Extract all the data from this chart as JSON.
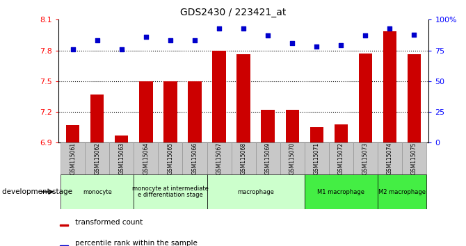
{
  "title": "GDS2430 / 223421_at",
  "samples": [
    "GSM115061",
    "GSM115062",
    "GSM115063",
    "GSM115064",
    "GSM115065",
    "GSM115066",
    "GSM115067",
    "GSM115068",
    "GSM115069",
    "GSM115070",
    "GSM115071",
    "GSM115072",
    "GSM115073",
    "GSM115074",
    "GSM115075"
  ],
  "bar_values": [
    7.07,
    7.37,
    6.97,
    7.5,
    7.5,
    7.5,
    7.8,
    7.76,
    7.22,
    7.22,
    7.05,
    7.08,
    7.77,
    7.99,
    7.76
  ],
  "dot_values": [
    76,
    83,
    76,
    86,
    83,
    83,
    93,
    93,
    87,
    81,
    78,
    79,
    87,
    93,
    88
  ],
  "bar_color": "#cc0000",
  "dot_color": "#0000cc",
  "ylim_left": [
    6.9,
    8.1
  ],
  "ylim_right": [
    0,
    100
  ],
  "yticks_left": [
    6.9,
    7.2,
    7.5,
    7.8,
    8.1
  ],
  "ytick_labels_left": [
    "6.9",
    "7.2",
    "7.5",
    "7.8",
    "8.1"
  ],
  "yticks_right": [
    0,
    25,
    50,
    75,
    100
  ],
  "ytick_labels_right": [
    "0",
    "25",
    "50",
    "75",
    "100%"
  ],
  "hlines": [
    7.2,
    7.5,
    7.8
  ],
  "groups": [
    {
      "label": "monocyte",
      "start": 0,
      "end": 2,
      "color": "#ccffcc"
    },
    {
      "label": "monocyte at intermediate\ne differentiation stage",
      "start": 3,
      "end": 5,
      "color": "#ccffcc"
    },
    {
      "label": "macrophage",
      "start": 6,
      "end": 9,
      "color": "#ccffcc"
    },
    {
      "label": "M1 macrophage",
      "start": 10,
      "end": 12,
      "color": "#44ee44"
    },
    {
      "label": "M2 macrophage",
      "start": 13,
      "end": 14,
      "color": "#44ee44"
    }
  ],
  "legend_bar_label": "transformed count",
  "legend_dot_label": "percentile rank within the sample",
  "dev_stage_label": "development stage",
  "bar_width": 0.55
}
